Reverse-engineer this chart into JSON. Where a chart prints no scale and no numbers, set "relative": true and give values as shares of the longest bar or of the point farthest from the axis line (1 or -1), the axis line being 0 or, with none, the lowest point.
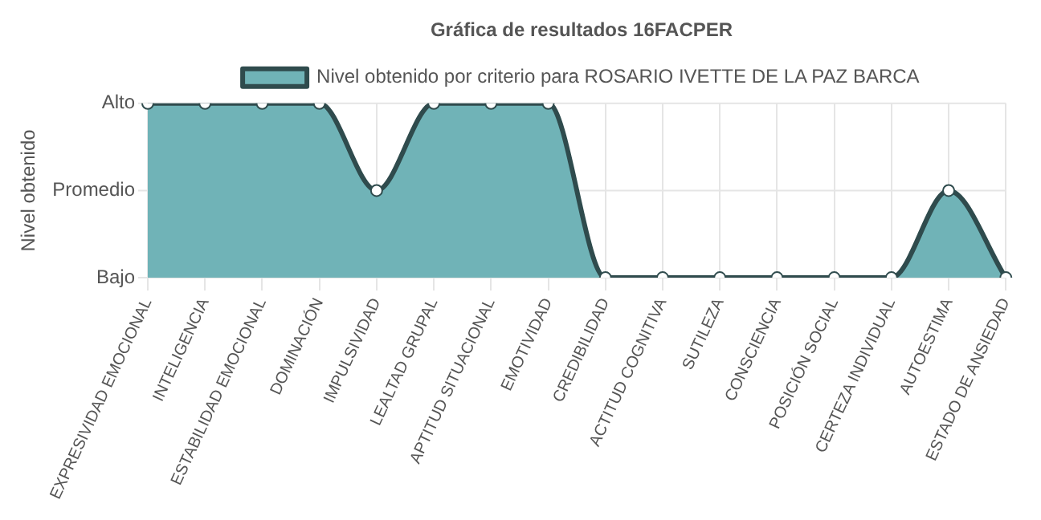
{
  "chart_data": {
    "type": "area",
    "title": "Gráfica de resultados 16FACPER",
    "ylabel": "Nivel obtenido",
    "relative": true,
    "categories": [
      "EXPRESIVIDAD EMOCIONAL",
      "INTELIGENCIA",
      "ESTABILIDAD EMOCIONAL",
      "DOMINACIÓN",
      "IMPULSIVIDAD",
      "LEALTAD GRUPAL",
      "APTITUD SITUACIONAL",
      "EMOTIVIDAD",
      "CREDIBILIDAD",
      "ACTITUD COGNITIVA",
      "SUTILEZA",
      "CONSCIENCIA",
      "POSICIÓN SOCIAL",
      "CERTEZA INDIVIDUAL",
      "AUTOESTIMA",
      "ESTADO DE ANSIEDAD"
    ],
    "annotations": [
      "Alto",
      "Promedio",
      "Bajo"
    ],
    "series": [
      {
        "name": "Nivel obtenido por criterio para ROSARIO IVETTE DE LA PAZ BARCA",
        "color": "#70b3b7",
        "values": [
          1,
          1,
          1,
          1,
          0.5,
          1,
          1,
          1,
          0,
          0,
          0,
          0,
          0,
          0,
          0.5,
          0
        ]
      }
    ],
    "grid": true,
    "legend": "top",
    "marker": "circle",
    "line_style": "solid"
  }
}
